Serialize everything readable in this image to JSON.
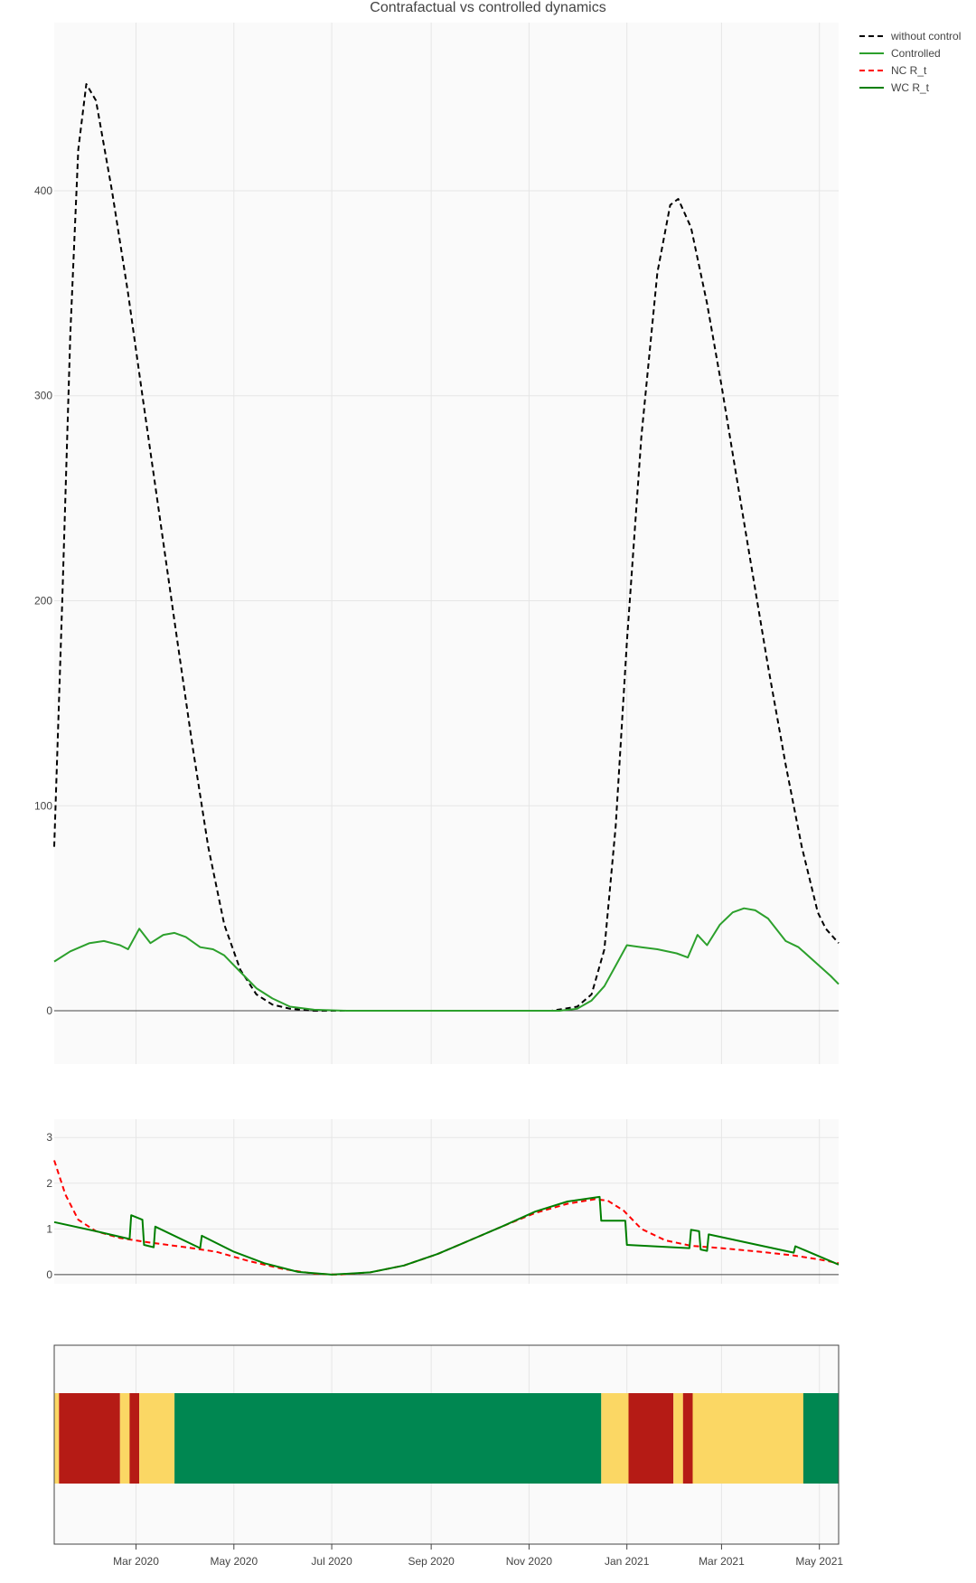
{
  "chart_data": [
    {
      "type": "line",
      "title": "Contrafactual vs controlled dynamics",
      "xlabel": "",
      "ylabel": "",
      "x_ticks": [
        "Mar 2020",
        "May 2020",
        "Jul 2020",
        "Sep 2020",
        "Nov 2020",
        "Jan 2021",
        "Mar 2021",
        "May 2021"
      ],
      "y_ticks": [
        "0",
        "100",
        "200",
        "300",
        "400"
      ],
      "x_range": [
        "2020-01-10",
        "2021-05-13"
      ],
      "ylim": [
        -26,
        482
      ],
      "grid": true,
      "legend": "top-right",
      "series": [
        {
          "name": "without control",
          "color": "#000000",
          "dash": "dashed",
          "points": [
            [
              "2020-01-10",
              80
            ],
            [
              "2020-01-15",
              200
            ],
            [
              "2020-01-20",
              330
            ],
            [
              "2020-01-25",
              420
            ],
            [
              "2020-01-30",
              452
            ],
            [
              "2020-02-05",
              444
            ],
            [
              "2020-02-15",
              400
            ],
            [
              "2020-02-25",
              350
            ],
            [
              "2020-03-05",
              300
            ],
            [
              "2020-03-15",
              245
            ],
            [
              "2020-03-25",
              190
            ],
            [
              "2020-04-05",
              130
            ],
            [
              "2020-04-15",
              80
            ],
            [
              "2020-04-25",
              42
            ],
            [
              "2020-05-05",
              20
            ],
            [
              "2020-05-15",
              8
            ],
            [
              "2020-05-25",
              3
            ],
            [
              "2020-06-05",
              1
            ],
            [
              "2020-06-20",
              0
            ],
            [
              "2020-08-01",
              0
            ],
            [
              "2020-10-01",
              0
            ],
            [
              "2020-11-15",
              0
            ],
            [
              "2020-12-01",
              2
            ],
            [
              "2020-12-10",
              8
            ],
            [
              "2020-12-18",
              30
            ],
            [
              "2020-12-25",
              90
            ],
            [
              "2021-01-01",
              180
            ],
            [
              "2021-01-10",
              280
            ],
            [
              "2021-01-20",
              360
            ],
            [
              "2021-01-28",
              393
            ],
            [
              "2021-02-02",
              396
            ],
            [
              "2021-02-10",
              382
            ],
            [
              "2021-02-20",
              345
            ],
            [
              "2021-03-01",
              305
            ],
            [
              "2021-03-10",
              262
            ],
            [
              "2021-03-20",
              215
            ],
            [
              "2021-03-30",
              168
            ],
            [
              "2021-04-10",
              120
            ],
            [
              "2021-04-20",
              80
            ],
            [
              "2021-04-30",
              48
            ],
            [
              "2021-05-05",
              40
            ],
            [
              "2021-05-13",
              33
            ]
          ]
        },
        {
          "name": "Controlled",
          "color": "#2ca02c",
          "dash": "solid",
          "points": [
            [
              "2020-01-10",
              24
            ],
            [
              "2020-01-20",
              29
            ],
            [
              "2020-02-01",
              33
            ],
            [
              "2020-02-10",
              34
            ],
            [
              "2020-02-20",
              32
            ],
            [
              "2020-02-25",
              30
            ],
            [
              "2020-03-03",
              40
            ],
            [
              "2020-03-10",
              33
            ],
            [
              "2020-03-18",
              37
            ],
            [
              "2020-03-25",
              38
            ],
            [
              "2020-04-01",
              36
            ],
            [
              "2020-04-10",
              31
            ],
            [
              "2020-04-18",
              30
            ],
            [
              "2020-04-25",
              27
            ],
            [
              "2020-05-05",
              19
            ],
            [
              "2020-05-15",
              11
            ],
            [
              "2020-05-25",
              6
            ],
            [
              "2020-06-05",
              2
            ],
            [
              "2020-06-20",
              0.5
            ],
            [
              "2020-07-10",
              0
            ],
            [
              "2020-11-20",
              0
            ],
            [
              "2020-12-01",
              1
            ],
            [
              "2020-12-10",
              5
            ],
            [
              "2020-12-18",
              12
            ],
            [
              "2020-12-25",
              22
            ],
            [
              "2021-01-01",
              32
            ],
            [
              "2021-01-10",
              31
            ],
            [
              "2021-01-20",
              30
            ],
            [
              "2021-02-01",
              28
            ],
            [
              "2021-02-08",
              26
            ],
            [
              "2021-02-14",
              37
            ],
            [
              "2021-02-20",
              32
            ],
            [
              "2021-02-28",
              42
            ],
            [
              "2021-03-08",
              48
            ],
            [
              "2021-03-15",
              50
            ],
            [
              "2021-03-22",
              49
            ],
            [
              "2021-03-30",
              45
            ],
            [
              "2021-04-10",
              34
            ],
            [
              "2021-04-18",
              31
            ],
            [
              "2021-04-28",
              24
            ],
            [
              "2021-05-08",
              17
            ],
            [
              "2021-05-13",
              13
            ]
          ]
        }
      ]
    },
    {
      "type": "line",
      "title": "",
      "xlabel": "",
      "ylabel": "",
      "y_ticks": [
        "0",
        "1",
        "2",
        "3"
      ],
      "ylim": [
        -0.2,
        3.4
      ],
      "grid": true,
      "series": [
        {
          "name": "NC R_t",
          "color": "#ff0000",
          "dash": "dashed",
          "points": [
            [
              "2020-01-10",
              2.5
            ],
            [
              "2020-01-17",
              1.75
            ],
            [
              "2020-01-25",
              1.2
            ],
            [
              "2020-02-05",
              0.95
            ],
            [
              "2020-02-20",
              0.8
            ],
            [
              "2020-03-10",
              0.7
            ],
            [
              "2020-04-01",
              0.6
            ],
            [
              "2020-04-20",
              0.5
            ],
            [
              "2020-05-10",
              0.3
            ],
            [
              "2020-06-01",
              0.12
            ],
            [
              "2020-06-20",
              0.02
            ],
            [
              "2020-07-05",
              0.0
            ],
            [
              "2020-07-25",
              0.05
            ],
            [
              "2020-08-15",
              0.2
            ],
            [
              "2020-09-05",
              0.45
            ],
            [
              "2020-09-25",
              0.75
            ],
            [
              "2020-10-15",
              1.05
            ],
            [
              "2020-11-05",
              1.35
            ],
            [
              "2020-11-25",
              1.55
            ],
            [
              "2020-12-12",
              1.65
            ],
            [
              "2020-12-20",
              1.62
            ],
            [
              "2020-12-30",
              1.4
            ],
            [
              "2021-01-10",
              1.0
            ],
            [
              "2021-01-25",
              0.75
            ],
            [
              "2021-02-10",
              0.63
            ],
            [
              "2021-03-01",
              0.58
            ],
            [
              "2021-03-25",
              0.5
            ],
            [
              "2021-04-15",
              0.42
            ],
            [
              "2021-05-01",
              0.33
            ],
            [
              "2021-05-13",
              0.25
            ]
          ]
        },
        {
          "name": "WC R_t",
          "color": "#007f00",
          "dash": "solid",
          "points": [
            [
              "2020-01-10",
              1.15
            ],
            [
              "2020-02-05",
              0.95
            ],
            [
              "2020-02-26",
              0.78
            ],
            [
              "2020-02-27",
              1.3
            ],
            [
              "2020-03-05",
              1.2
            ],
            [
              "2020-03-06",
              0.65
            ],
            [
              "2020-03-12",
              0.6
            ],
            [
              "2020-03-13",
              1.05
            ],
            [
              "2020-04-10",
              0.58
            ],
            [
              "2020-04-11",
              0.85
            ],
            [
              "2020-05-01",
              0.5
            ],
            [
              "2020-05-20",
              0.25
            ],
            [
              "2020-06-10",
              0.06
            ],
            [
              "2020-07-01",
              0.0
            ],
            [
              "2020-07-25",
              0.05
            ],
            [
              "2020-08-15",
              0.2
            ],
            [
              "2020-09-05",
              0.45
            ],
            [
              "2020-09-25",
              0.75
            ],
            [
              "2020-10-15",
              1.05
            ],
            [
              "2020-11-05",
              1.38
            ],
            [
              "2020-11-25",
              1.6
            ],
            [
              "2020-12-15",
              1.7
            ],
            [
              "2020-12-16",
              1.18
            ],
            [
              "2020-12-31",
              1.18
            ],
            [
              "2021-01-01",
              0.65
            ],
            [
              "2021-02-09",
              0.58
            ],
            [
              "2021-02-10",
              0.98
            ],
            [
              "2021-02-15",
              0.95
            ],
            [
              "2021-02-16",
              0.55
            ],
            [
              "2021-02-20",
              0.52
            ],
            [
              "2021-02-21",
              0.88
            ],
            [
              "2021-04-15",
              0.48
            ],
            [
              "2021-04-16",
              0.62
            ],
            [
              "2021-05-13",
              0.22
            ]
          ]
        }
      ]
    },
    {
      "type": "heatmap",
      "title": "",
      "colors": {
        "red": "#b51b15",
        "yellow": "#fbd764",
        "green": "#008751"
      },
      "segments": [
        [
          "2020-01-10",
          "2020-01-13",
          "yellow"
        ],
        [
          "2020-01-13",
          "2020-02-20",
          "red"
        ],
        [
          "2020-02-20",
          "2020-02-26",
          "yellow"
        ],
        [
          "2020-02-26",
          "2020-03-03",
          "red"
        ],
        [
          "2020-03-03",
          "2020-03-25",
          "yellow"
        ],
        [
          "2020-03-25",
          "2020-12-16",
          "green"
        ],
        [
          "2020-12-16",
          "2021-01-02",
          "yellow"
        ],
        [
          "2021-01-02",
          "2021-01-30",
          "red"
        ],
        [
          "2021-01-30",
          "2021-02-05",
          "yellow"
        ],
        [
          "2021-02-05",
          "2021-02-11",
          "red"
        ],
        [
          "2021-02-11",
          "2021-04-21",
          "yellow"
        ],
        [
          "2021-04-21",
          "2021-05-13",
          "green"
        ]
      ]
    }
  ]
}
